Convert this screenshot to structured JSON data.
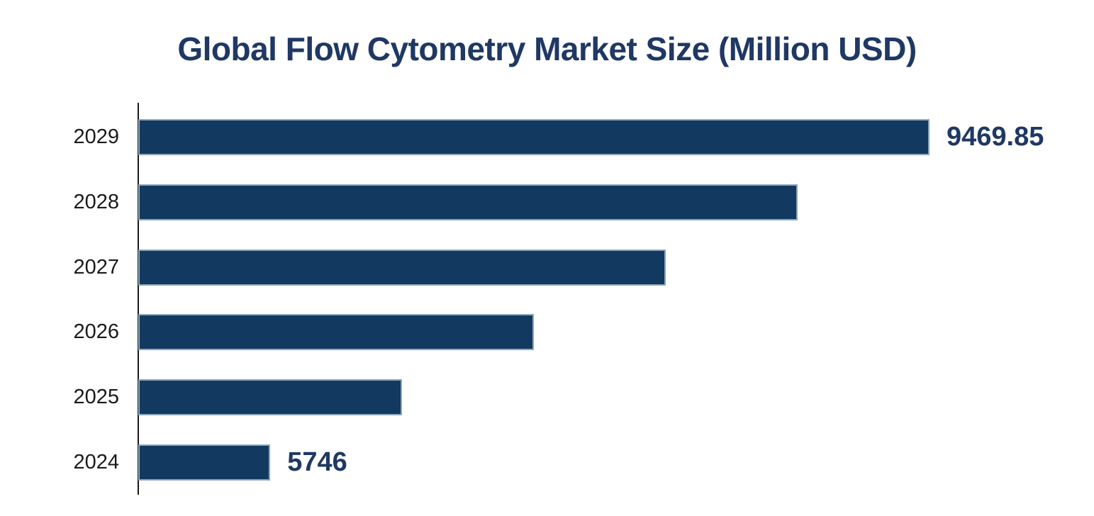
{
  "title": "Global Flow Cytometry Market Size (Million USD)",
  "colors": {
    "title_text": "#1F3864",
    "bar_fill": "#123A60",
    "bar_border": "#8FA5BD",
    "value_label_text": "#1F3864",
    "category_label_text": "#1A1A1A",
    "axis_line": "#1A1A1A",
    "background": "#FFFFFF"
  },
  "chart_data": {
    "type": "bar",
    "orientation": "horizontal",
    "title": "Global Flow Cytometry Market Size (Million USD)",
    "xlabel": "",
    "ylabel": "",
    "categories": [
      "2029",
      "2028",
      "2027",
      "2026",
      "2025",
      "2024"
    ],
    "series": [
      {
        "name": "Market Size (Million USD)",
        "points": [
          {
            "category": "2029",
            "value": 9469.85,
            "data_label": "9469.85",
            "estimated": false
          },
          {
            "category": "2028",
            "value": 8725.1,
            "data_label": "",
            "estimated": true
          },
          {
            "category": "2027",
            "value": 7980.3,
            "data_label": "",
            "estimated": true
          },
          {
            "category": "2026",
            "value": 7235.5,
            "data_label": "",
            "estimated": true
          },
          {
            "category": "2025",
            "value": 6490.8,
            "data_label": "",
            "estimated": true
          },
          {
            "category": "2024",
            "value": 5746,
            "data_label": "5746",
            "estimated": false
          }
        ]
      }
    ],
    "xlim": [
      5000,
      9500
    ],
    "grid": false,
    "legend": false,
    "notes": "Data labels visible only on 2029 and 2024 bars; 2025-2028 values estimated from bar lengths against the ~5000 axis baseline."
  }
}
